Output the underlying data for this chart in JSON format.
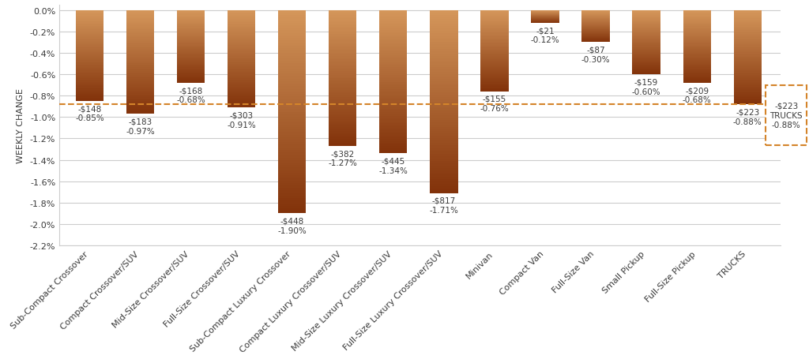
{
  "categories": [
    "Sub-Compact Crossover",
    "Compact Crossover/SUV",
    "Mid-Size Crossover/SUV",
    "Full-Size Crossover/SUV",
    "Sub-Compact Luxury Crossover",
    "Compact Luxury Crossover/SUV",
    "Mid-Size Luxury Crossover/SUV",
    "Full-Size Luxury Crossover/SUV",
    "Minivan",
    "Compact Van",
    "Full-Size Van",
    "Small Pickup",
    "Full-Size Pickup",
    "TRUCKS"
  ],
  "values": [
    -0.85,
    -0.97,
    -0.68,
    -0.91,
    -1.9,
    -1.27,
    -1.34,
    -1.71,
    -0.76,
    -0.12,
    -0.3,
    -0.6,
    -0.68,
    -0.88
  ],
  "dollar_values": [
    -148,
    -183,
    -168,
    -303,
    -448,
    -382,
    -445,
    -817,
    -155,
    -21,
    -87,
    -159,
    -209,
    -223
  ],
  "dashed_line_y": -0.88,
  "ylabel": "WEEKLY CHANGE",
  "ylim": [
    -2.2,
    0.05
  ],
  "yticks": [
    0.0,
    -0.2,
    -0.4,
    -0.6,
    -0.8,
    -1.0,
    -1.2,
    -1.4,
    -1.6,
    -1.8,
    -2.0,
    -2.2
  ],
  "bar_color_top": "#D4905A",
  "bar_color_bottom": "#8B3A0F",
  "trucks_box_color": "#D4842A",
  "dashed_line_color": "#D4842A",
  "background_color": "#FFFFFF",
  "grid_color": "#CCCCCC",
  "text_color": "#3A3A3A",
  "tick_fontsize": 8,
  "label_fontsize": 8,
  "bar_label_fontsize": 7.5
}
